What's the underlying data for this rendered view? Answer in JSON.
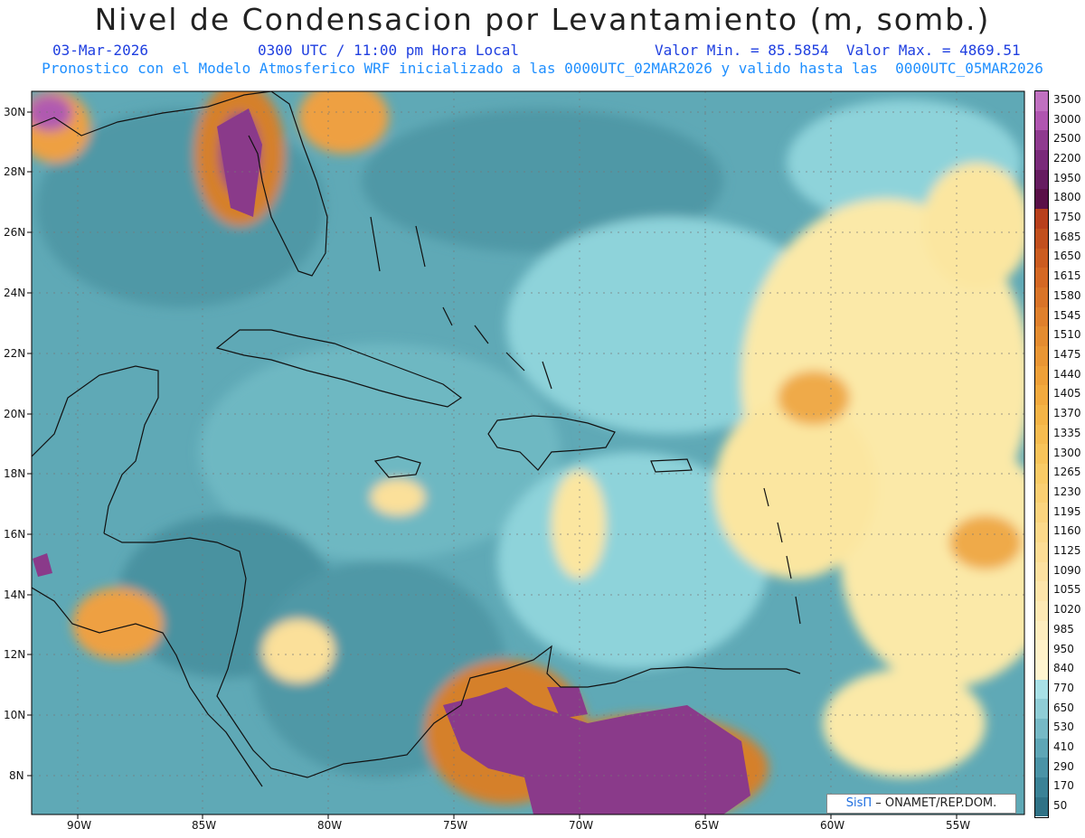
{
  "title": "Nivel de Condensacion por Levantamiento (m, somb.)",
  "header": {
    "date": "03-Mar-2026",
    "time": "0300 UTC / 11:00 pm Hora Local",
    "minmax": "Valor Min. = 85.5854  Valor Max. = 4869.51"
  },
  "subtitle": "Pronostico con el Modelo Atmosferico WRF inicializado a las 0000UTC_02MAR2026 y valido hasta las  0000UTC_05MAR2026",
  "lat_labels": [
    "30N",
    "28N",
    "26N",
    "24N",
    "22N",
    "20N",
    "18N",
    "16N",
    "14N",
    "12N",
    "10N",
    "8N"
  ],
  "lon_labels": [
    "90W",
    "85W",
    "80W",
    "75W",
    "70W",
    "65W",
    "60W",
    "55W"
  ],
  "colorbar": {
    "labels": [
      "3500",
      "3000",
      "2500",
      "2200",
      "1950",
      "1800",
      "1750",
      "1685",
      "1650",
      "1615",
      "1580",
      "1545",
      "1510",
      "1475",
      "1440",
      "1405",
      "1370",
      "1335",
      "1300",
      "1265",
      "1230",
      "1195",
      "1160",
      "1125",
      "1090",
      "1055",
      "1020",
      "985",
      "950",
      "840",
      "770",
      "650",
      "530",
      "410",
      "290",
      "170",
      "50"
    ],
    "colors": [
      "#c070c0",
      "#b055b0",
      "#8f3a8f",
      "#7a2a7a",
      "#661c60",
      "#5a1048",
      "#b8401c",
      "#c2501e",
      "#cb5c20",
      "#d46824",
      "#d97428",
      "#df802c",
      "#e48c30",
      "#e99634",
      "#eea038",
      "#f2aa3e",
      "#f4b446",
      "#f6bc50",
      "#f8c45a",
      "#f9cb66",
      "#facf72",
      "#fbd47e",
      "#fcd98a",
      "#fddd95",
      "#fde1a0",
      "#fee5aa",
      "#fee9b4",
      "#feedbe",
      "#fff1c8",
      "#fff5d0",
      "#a8e0e6",
      "#8fcdd6",
      "#76b9c6",
      "#5ea6b6",
      "#4a93a6",
      "#3a8296",
      "#2f7286"
    ]
  },
  "credit": {
    "sis": "SisΠ",
    "text": "– ONAMET/REP.DOM."
  }
}
